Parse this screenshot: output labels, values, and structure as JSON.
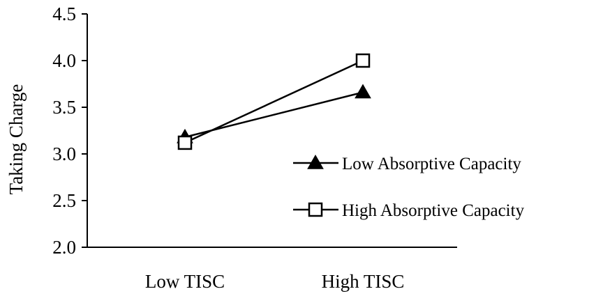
{
  "chart_data": {
    "type": "line",
    "title": "",
    "xlabel": "",
    "ylabel": "Taking Charge",
    "categories": [
      "Low TISC",
      "High TISC"
    ],
    "ylim": [
      2.0,
      4.5
    ],
    "yticks": [
      "2.0",
      "2.5",
      "3.0",
      "3.5",
      "4.0",
      "4.5"
    ],
    "ytick_values": [
      2.0,
      2.5,
      3.0,
      3.5,
      4.0,
      4.5
    ],
    "grid": false,
    "legend_position": "right",
    "series": [
      {
        "name": "Low Absorptive Capacity",
        "marker": "filled-triangle",
        "color": "#000000",
        "values": [
          3.18,
          3.66
        ]
      },
      {
        "name": "High Absorptive Capacity",
        "marker": "open-square",
        "color": "#000000",
        "values": [
          3.12,
          4.0
        ]
      }
    ]
  }
}
